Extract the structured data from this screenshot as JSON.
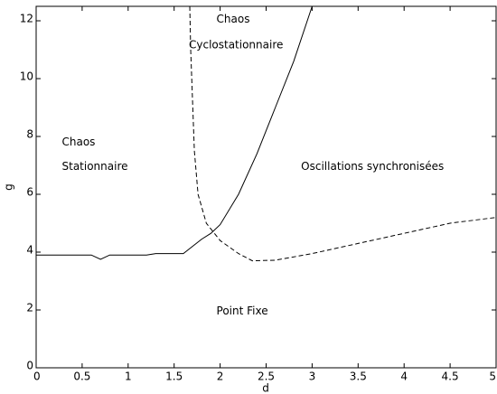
{
  "chart_data": {
    "type": "line",
    "xlabel": "d",
    "ylabel": "g",
    "xlim": [
      0,
      5
    ],
    "ylim": [
      0,
      12.5
    ],
    "xticks": [
      0,
      0.5,
      1,
      1.5,
      2,
      2.5,
      3,
      3.5,
      4,
      4.5,
      5
    ],
    "yticks": [
      0,
      2,
      4,
      6,
      8,
      10,
      12
    ],
    "series": [
      {
        "color": "#000000",
        "style": "solid",
        "x": [
          0,
          0.6,
          0.7,
          0.8,
          1.2,
          1.3,
          1.6,
          1.7,
          1.8,
          1.9,
          2.0,
          2.2,
          2.4,
          2.6,
          2.8,
          3.0
        ],
        "values": [
          3.9,
          3.9,
          3.75,
          3.9,
          3.9,
          3.95,
          3.95,
          4.2,
          4.45,
          4.65,
          4.95,
          6.0,
          7.4,
          9.0,
          10.6,
          12.5
        ]
      },
      {
        "color": "#000000",
        "style": "dashed",
        "x": [
          1.67,
          1.68,
          1.72,
          1.76,
          1.85,
          2.0,
          2.2,
          2.35,
          2.6,
          3.0,
          3.5,
          4.0,
          4.5,
          5.0
        ],
        "values": [
          12.5,
          11,
          7.5,
          6,
          5,
          4.4,
          3.95,
          3.7,
          3.72,
          3.95,
          4.3,
          4.65,
          5.0,
          5.2
        ]
      }
    ],
    "annotations": [
      {
        "text": "Chaos",
        "x": 0.28,
        "y": 7.8
      },
      {
        "text": "Stationnaire",
        "x": 0.28,
        "y": 6.95
      },
      {
        "text": "Chaos",
        "x": 1.96,
        "y": 12.05
      },
      {
        "text": "Cyclostationnaire",
        "x": 1.66,
        "y": 11.15
      },
      {
        "text": "Oscillations synchronisées",
        "x": 2.88,
        "y": 6.95
      },
      {
        "text": "Point Fixe",
        "x": 1.96,
        "y": 1.95
      }
    ]
  }
}
